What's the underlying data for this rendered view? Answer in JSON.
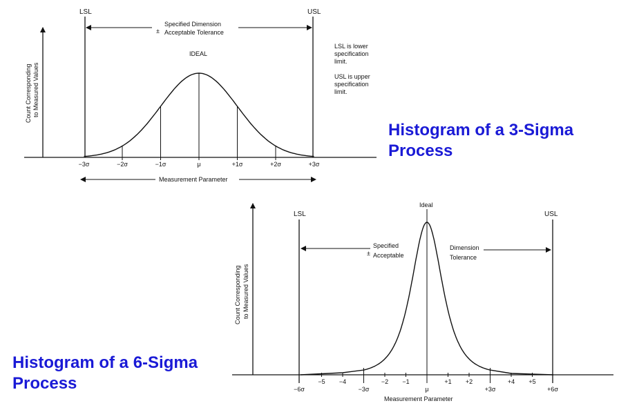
{
  "top_figure": {
    "heading_line1": "Histogram of a 3-Sigma",
    "heading_line2": "Process",
    "lsl": "LSL",
    "usl": "USL",
    "spec_line1": "Specified Dimension",
    "spec_pm": "±",
    "spec_line2": "Acceptable Tolerance",
    "ideal": "IDEAL",
    "y_label_line1": "Count Corresponding",
    "y_label_line2": "to Measured Values",
    "x_label": "Measurement Parameter",
    "note_lsl": [
      "LSL is lower",
      "specification",
      "limit."
    ],
    "note_usl": [
      "USL is upper",
      "specification",
      "limit."
    ],
    "ticks": [
      {
        "label": "−3σ",
        "sigma": -3
      },
      {
        "label": "−2σ",
        "sigma": -2
      },
      {
        "label": "−1σ",
        "sigma": -1
      },
      {
        "label": "μ",
        "sigma": 0
      },
      {
        "label": "+1σ",
        "sigma": 1
      },
      {
        "label": "+2σ",
        "sigma": 2
      },
      {
        "label": "+3σ",
        "sigma": 3
      }
    ]
  },
  "bottom_figure": {
    "heading_line1": "Histogram of a 6-Sigma",
    "heading_line2": "Process",
    "lsl": "LSL",
    "usl": "USL",
    "ideal": "Ideal",
    "spec_line1": "Specified",
    "spec_pm": "±",
    "spec_line2": "Acceptable",
    "dim_line1": "Dimension",
    "dim_line2": "Tolerance",
    "y_label_line1": "Count Corresponding",
    "y_label_line2": "to Measured Values",
    "x_label": "Measurement Parameter",
    "ticks": [
      {
        "label": "−5",
        "sigma": -5
      },
      {
        "label": "−4",
        "sigma": -4
      },
      {
        "label": "−2",
        "sigma": -2
      },
      {
        "label": "−1",
        "sigma": -1
      },
      {
        "label": "+1",
        "sigma": 1
      },
      {
        "label": "+2",
        "sigma": 2
      },
      {
        "label": "+4",
        "sigma": 4
      },
      {
        "label": "+5",
        "sigma": 5
      }
    ],
    "low_ticks": [
      {
        "label": "−6σ",
        "sigma": -6
      },
      {
        "label": "−3σ",
        "sigma": -3
      },
      {
        "label": "μ",
        "sigma": 0
      },
      {
        "label": "+3σ",
        "sigma": 3
      },
      {
        "label": "+6σ",
        "sigma": 6
      }
    ]
  }
}
